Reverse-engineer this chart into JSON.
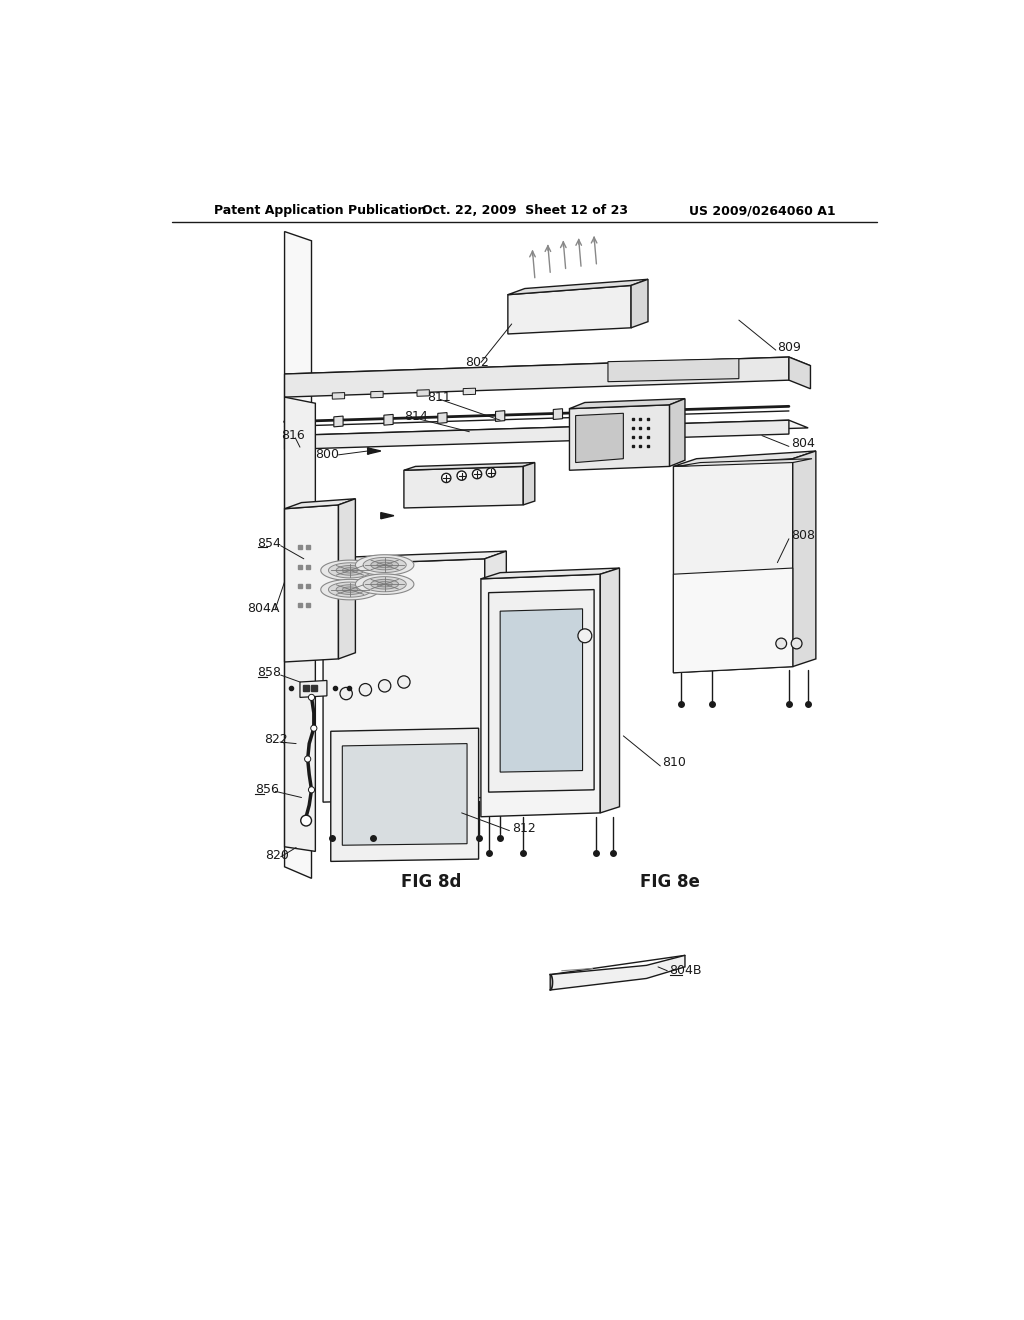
{
  "bg_color": "#ffffff",
  "line_color": "#1a1a1a",
  "gray_color": "#666666",
  "light_gray": "#d0d0d0",
  "header_left": "Patent Application Publication",
  "header_mid": "Oct. 22, 2009  Sheet 12 of 23",
  "header_right": "US 2009/0264060 A1",
  "fig_label_8d": "FIG 8d",
  "fig_label_8e": "FIG 8e"
}
